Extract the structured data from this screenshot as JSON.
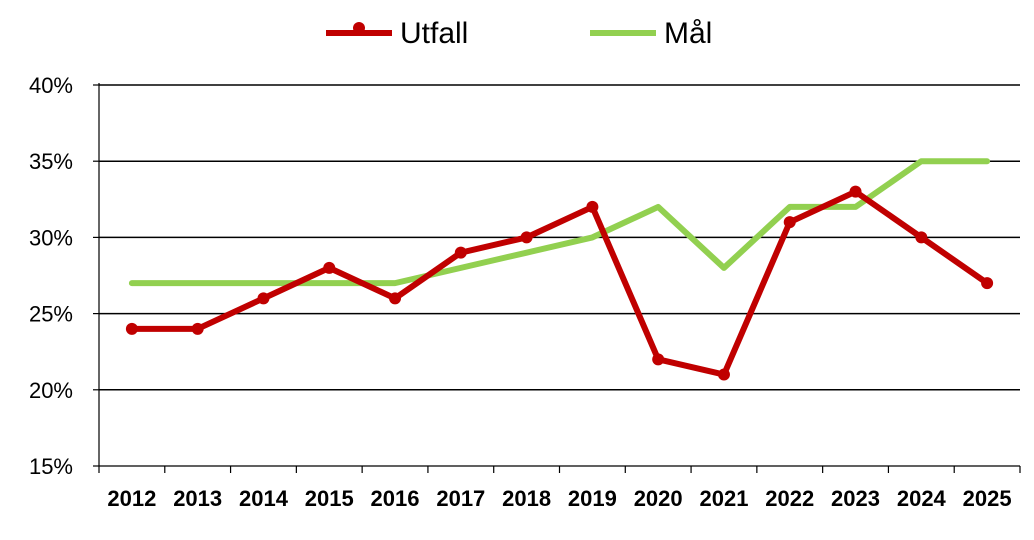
{
  "chart_data": {
    "type": "line",
    "categories": [
      "2012",
      "2013",
      "2014",
      "2015",
      "2016",
      "2017",
      "2018",
      "2019",
      "2020",
      "2021",
      "2022",
      "2023",
      "2024",
      "2025"
    ],
    "series": [
      {
        "name": "Utfall",
        "color": "#C00000",
        "markers": true,
        "values": [
          24,
          24,
          26,
          28,
          26,
          29,
          30,
          32,
          22,
          21,
          31,
          33,
          30,
          27
        ]
      },
      {
        "name": "Mål",
        "color": "#92D050",
        "markers": false,
        "values": [
          27,
          27,
          27,
          27,
          27,
          28,
          29,
          30,
          32,
          28,
          32,
          32,
          35,
          35
        ]
      }
    ],
    "ylim": [
      15,
      40
    ],
    "yticks": [
      15,
      20,
      25,
      30,
      35,
      40
    ],
    "ytick_labels": [
      "15%",
      "20%",
      "25%",
      "30%",
      "35%",
      "40%"
    ],
    "grid": true,
    "legend_position": "top-center"
  }
}
